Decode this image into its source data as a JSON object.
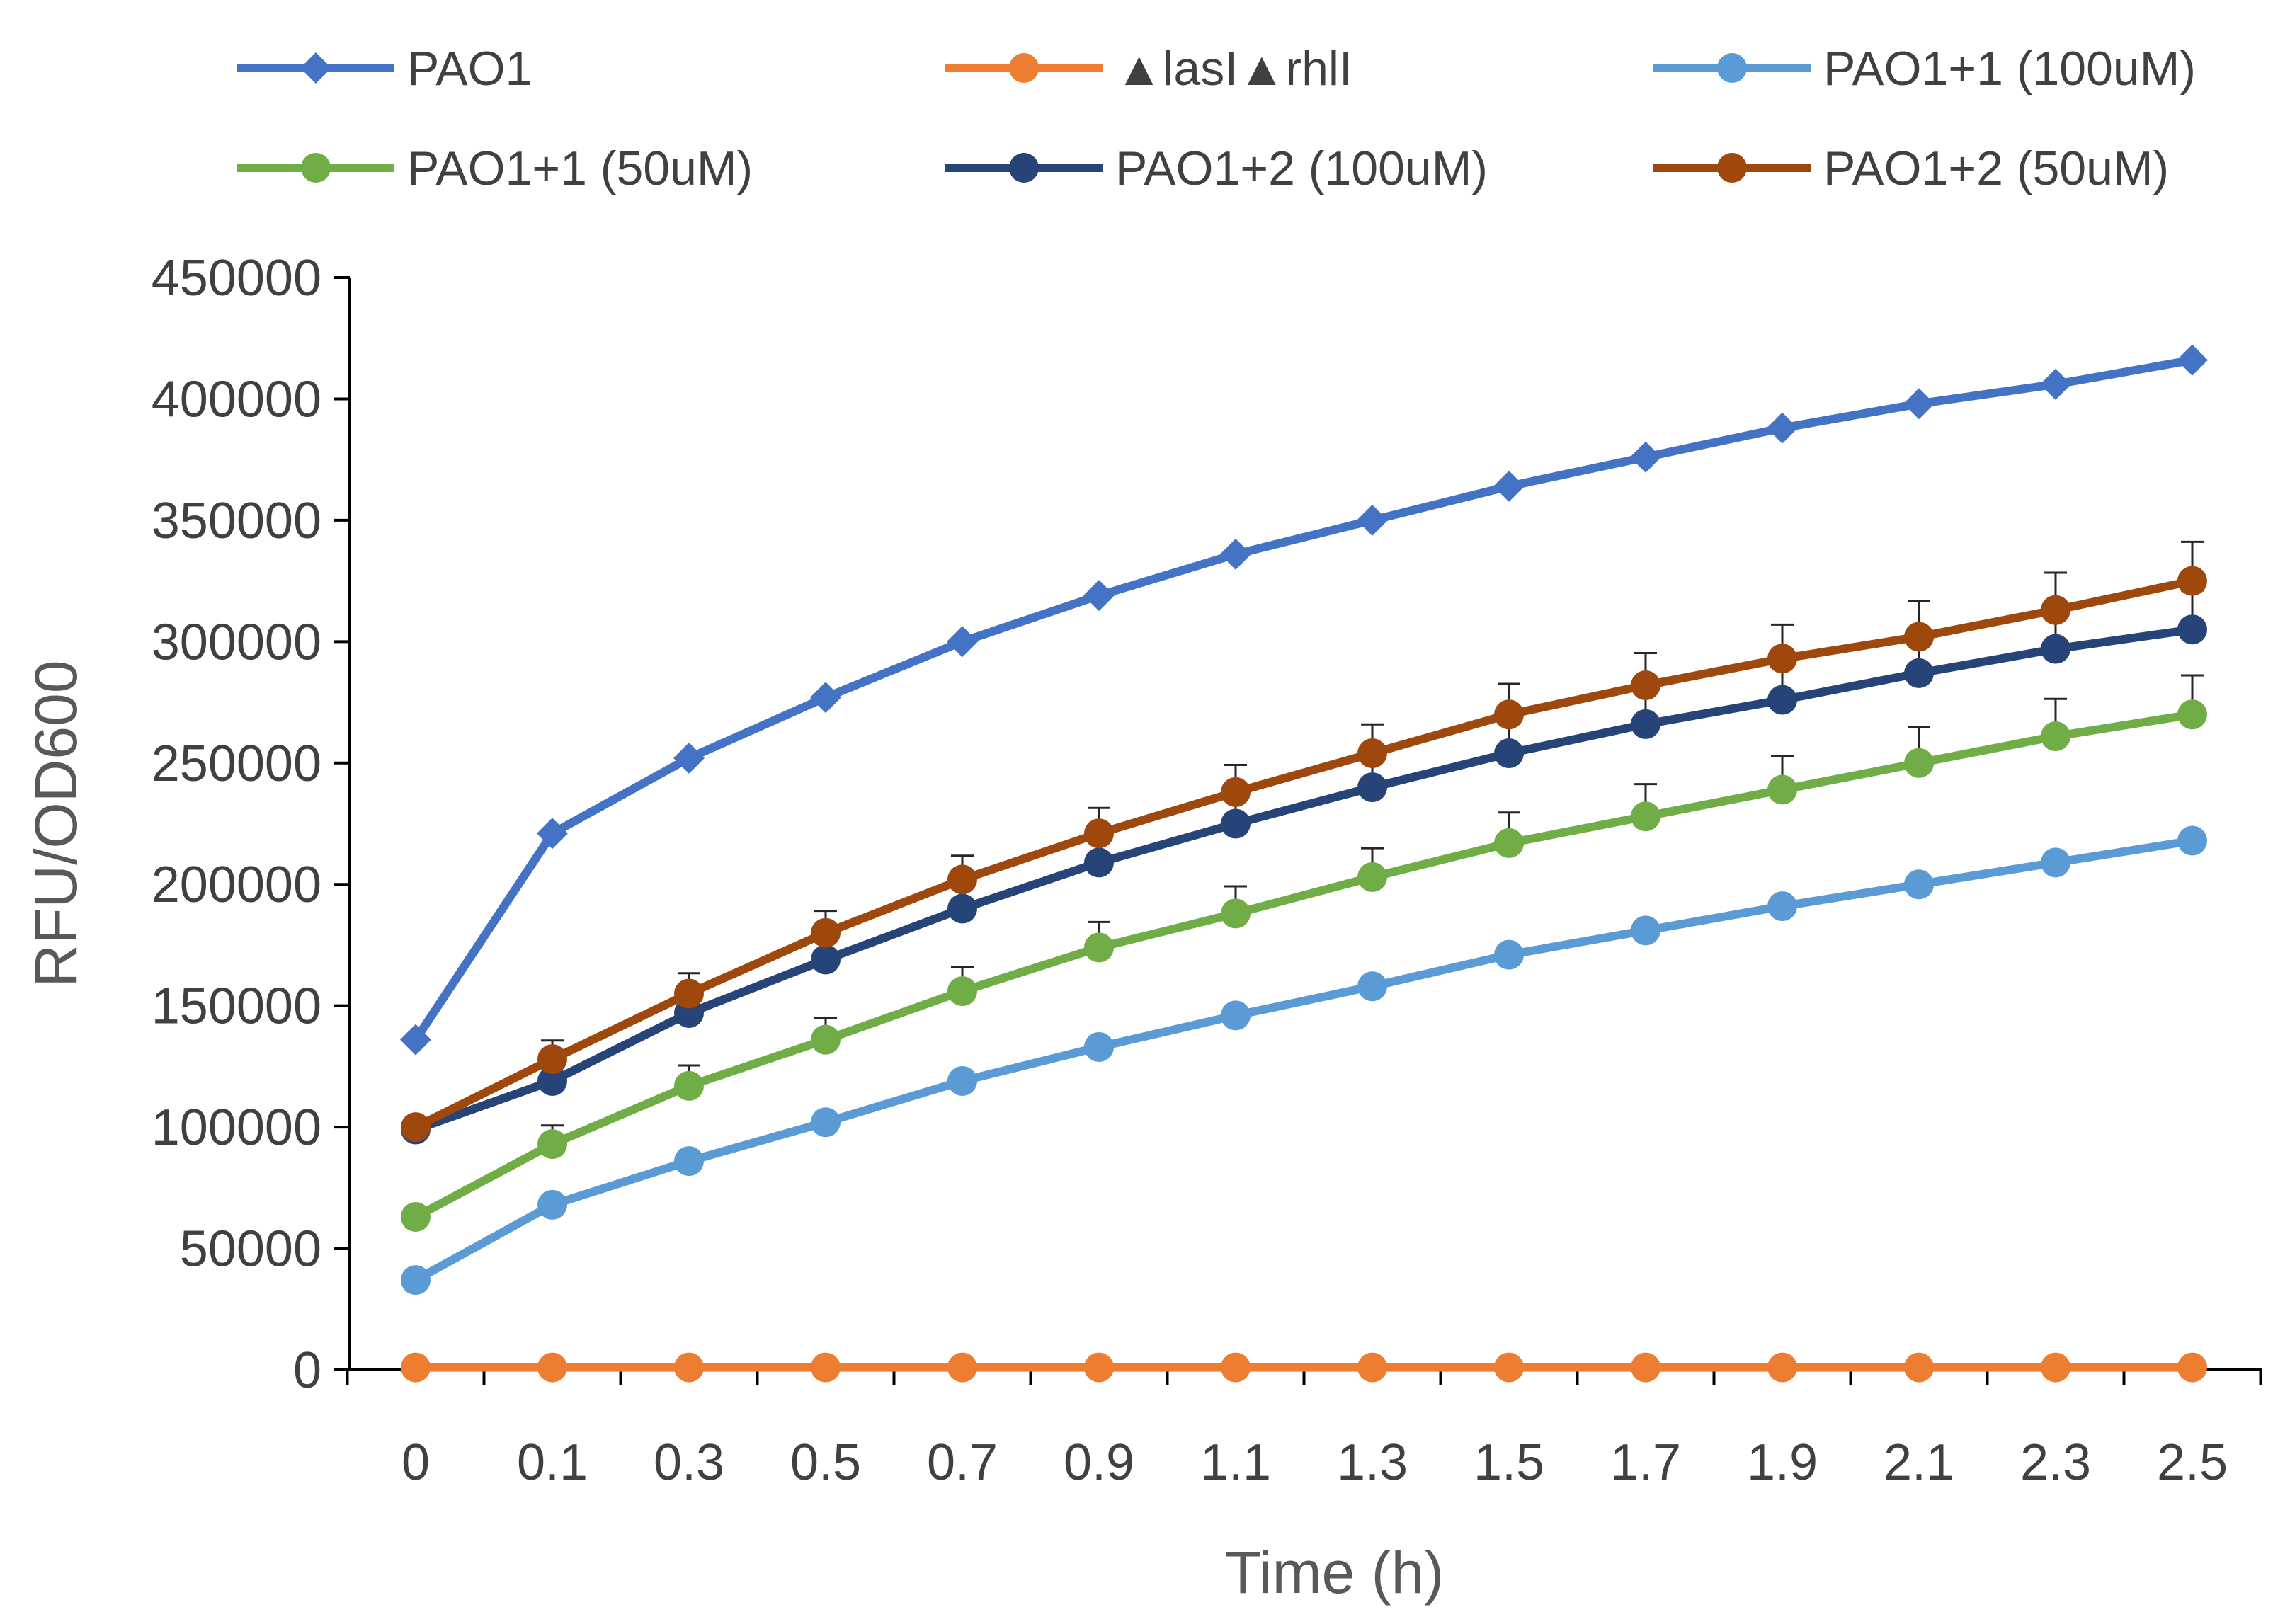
{
  "chart_data": {
    "type": "line",
    "title": "",
    "xlabel": "Time (h)",
    "ylabel": "RFU/OD600",
    "ylim": [
      0,
      450000
    ],
    "yticks": [
      0,
      50000,
      100000,
      150000,
      200000,
      250000,
      300000,
      350000,
      400000,
      450000
    ],
    "ytick_labels": [
      "0",
      "50000",
      "100000",
      "150000",
      "200000",
      "250000",
      "300000",
      "350000",
      "400000",
      "450000"
    ],
    "categories": [
      "0",
      "0.1",
      "0.3",
      "0.5",
      "0.7",
      "0.9",
      "1.1",
      "1.3",
      "1.5",
      "1.7",
      "1.9",
      "2.1",
      "2.3",
      "2.5"
    ],
    "legend_position": "top",
    "series": [
      {
        "name": "PAO1",
        "color": "#4472C4",
        "marker": "diamond",
        "values": [
          136000,
          221000,
          252000,
          277000,
          300000,
          319000,
          336000,
          350000,
          364000,
          376000,
          388000,
          398000,
          406000,
          416000
        ]
      },
      {
        "name": "▲lasI▲rhlI",
        "color": "#ED7D31",
        "marker": "circle",
        "values": [
          1000,
          1000,
          1000,
          1000,
          1000,
          1000,
          1000,
          1000,
          1000,
          1000,
          1000,
          1000,
          1000,
          1000
        ]
      },
      {
        "name": "PAO1+1 (100uM)",
        "color": "#5B9BD5",
        "marker": "circle",
        "values": [
          37000,
          68000,
          86000,
          102000,
          119000,
          133000,
          146000,
          158000,
          171000,
          181000,
          191000,
          200000,
          209000,
          218000
        ]
      },
      {
        "name": "PAO1+1 (50uM)",
        "color": "#70AD47",
        "marker": "circle",
        "values": [
          63000,
          93000,
          117000,
          136000,
          156000,
          174000,
          188000,
          203000,
          217000,
          228000,
          239000,
          250000,
          261000,
          270000
        ]
      },
      {
        "name": "PAO1+2 (100uM)",
        "color": "#264478",
        "marker": "circle",
        "values": [
          99000,
          119000,
          147000,
          169000,
          190000,
          209000,
          225000,
          240000,
          254000,
          266000,
          276000,
          287000,
          297000,
          305000
        ]
      },
      {
        "name": "PAO1+2 (50uM)",
        "color": "#9E480E",
        "marker": "circle",
        "values": [
          100000,
          128000,
          155000,
          180000,
          202000,
          221000,
          238000,
          254000,
          270000,
          282000,
          293000,
          302000,
          313000,
          325000
        ]
      }
    ]
  }
}
